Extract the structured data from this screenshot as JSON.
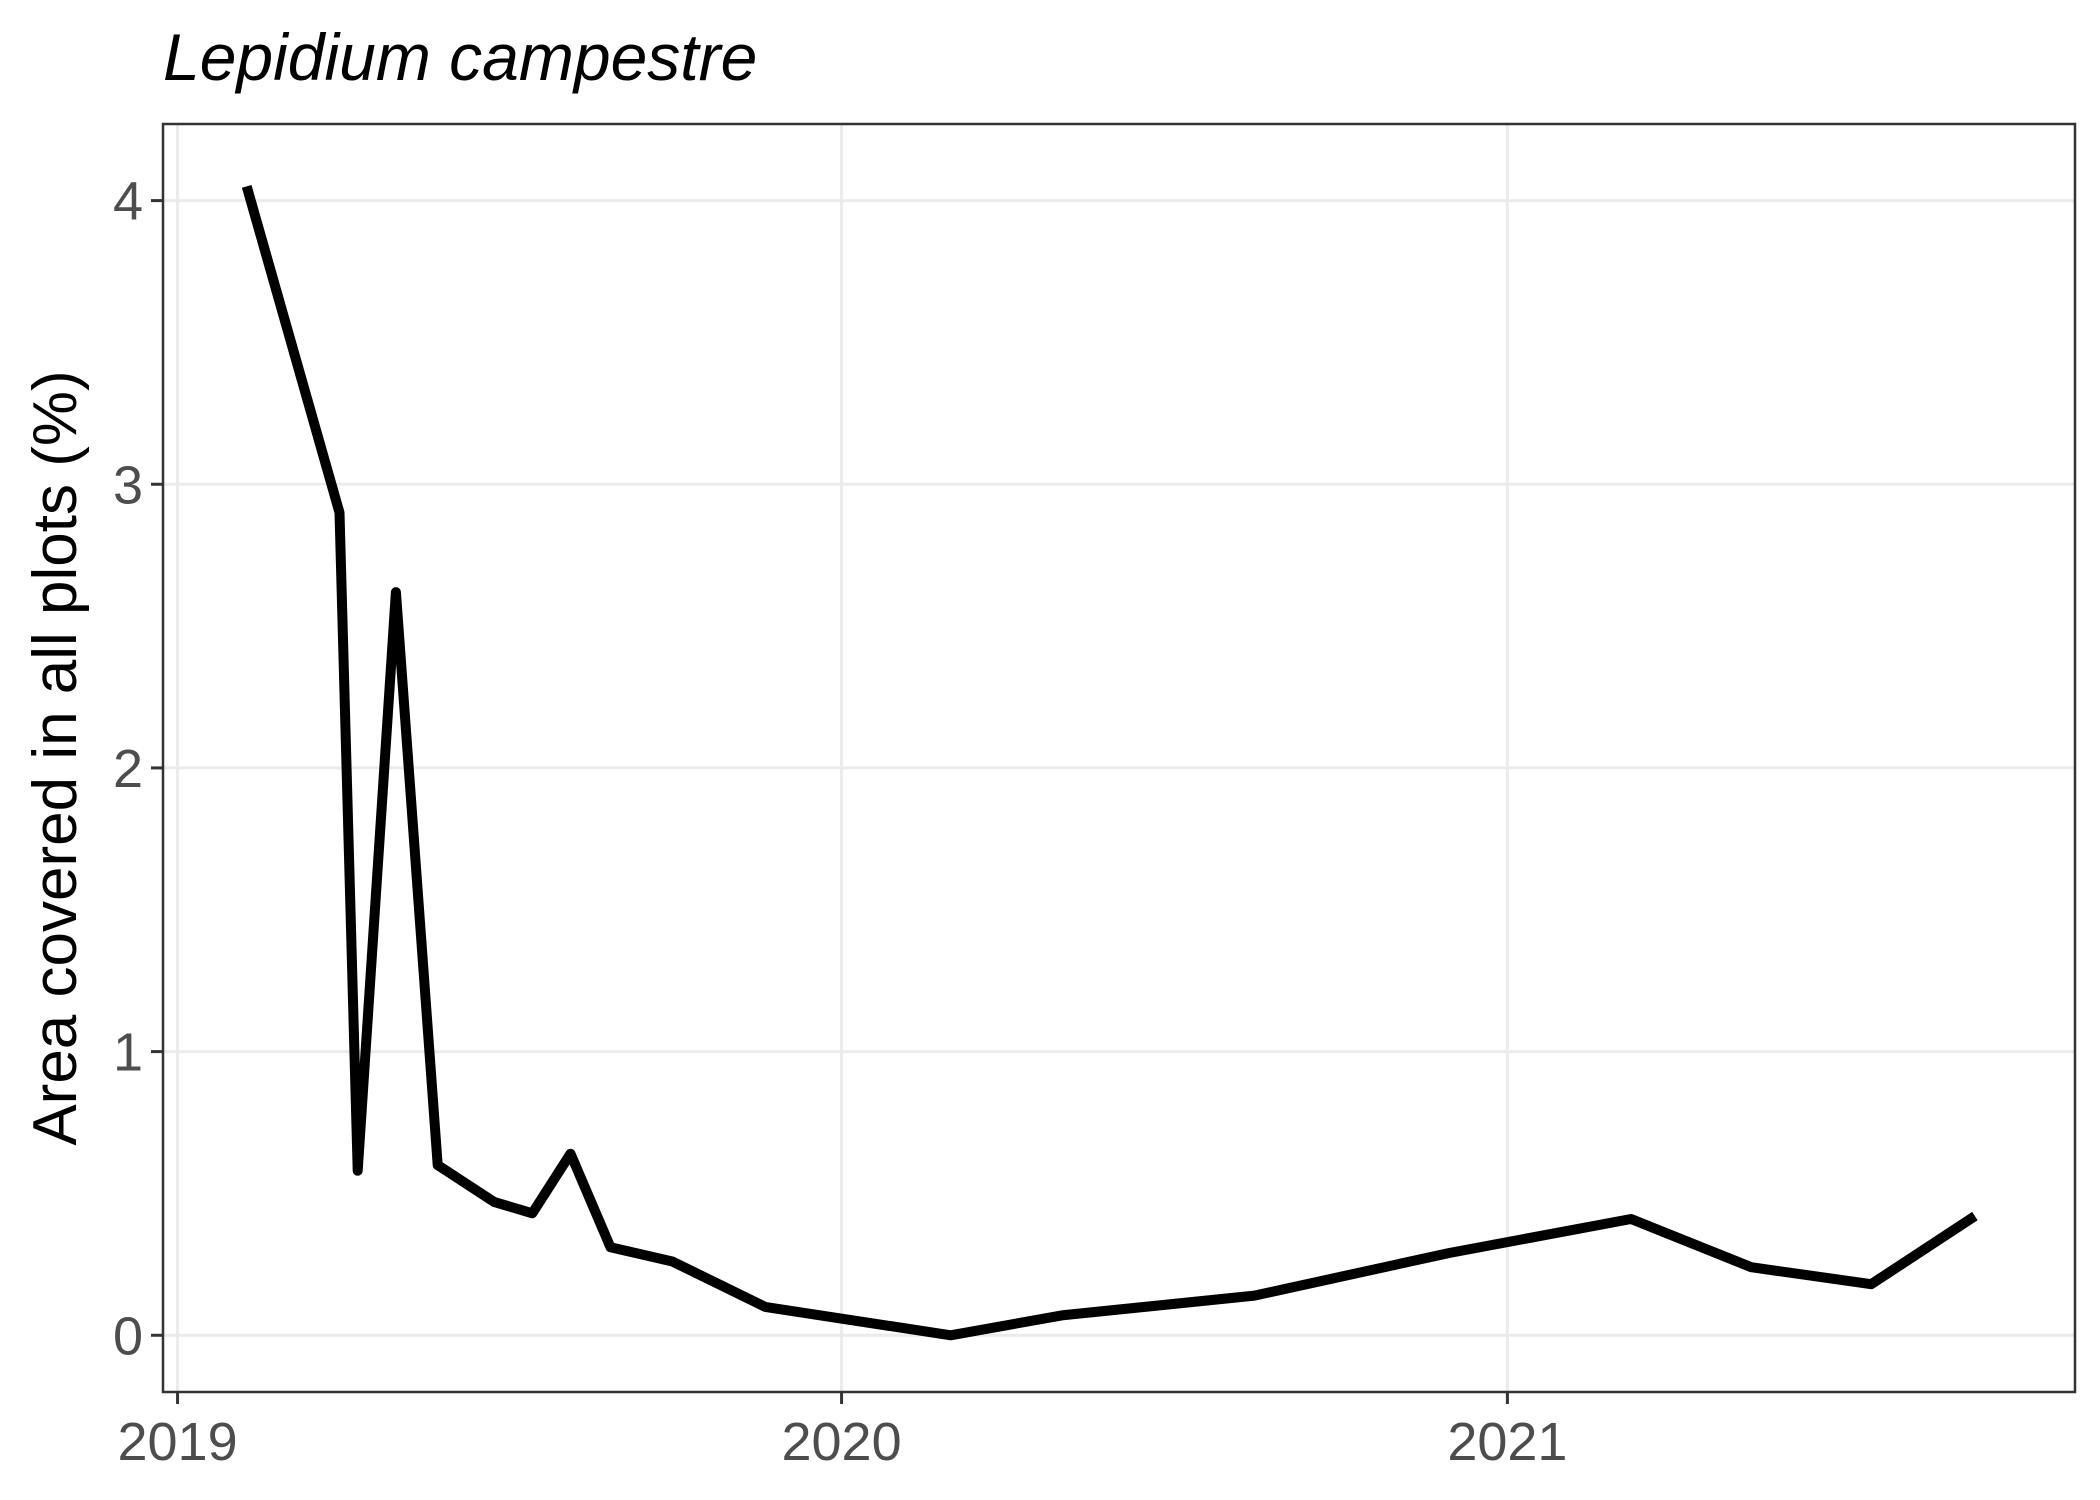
{
  "chart_data": {
    "type": "line",
    "title": "Lepidium campestre",
    "xlabel": "",
    "ylabel": "Area covered in all plots (%)",
    "x_ticks": [
      "2019",
      "2020",
      "2021"
    ],
    "y_ticks": [
      "0",
      "1",
      "2",
      "3",
      "4"
    ],
    "xlim": [
      "2018-12-24",
      "2021-11-09"
    ],
    "ylim": [
      -0.2,
      4.27
    ],
    "grid": true,
    "legend": "none",
    "line_color": "#000000",
    "series": [
      {
        "x": [
          "2019-02-08",
          "2019-03-31",
          "2019-04-10",
          "2019-05-01",
          "2019-05-24",
          "2019-06-24",
          "2019-07-15",
          "2019-08-05",
          "2019-08-27",
          "2019-09-30",
          "2019-11-20",
          "2020-03-01",
          "2020-05-01",
          "2020-08-15",
          "2020-11-30",
          "2021-03-10",
          "2021-05-15",
          "2021-07-20",
          "2021-09-15"
        ],
        "y": [
          4.05,
          2.9,
          0.58,
          2.62,
          0.6,
          0.47,
          0.43,
          0.64,
          0.31,
          0.26,
          0.1,
          0.0,
          0.07,
          0.14,
          0.29,
          0.41,
          0.24,
          0.18,
          0.42
        ]
      }
    ]
  }
}
